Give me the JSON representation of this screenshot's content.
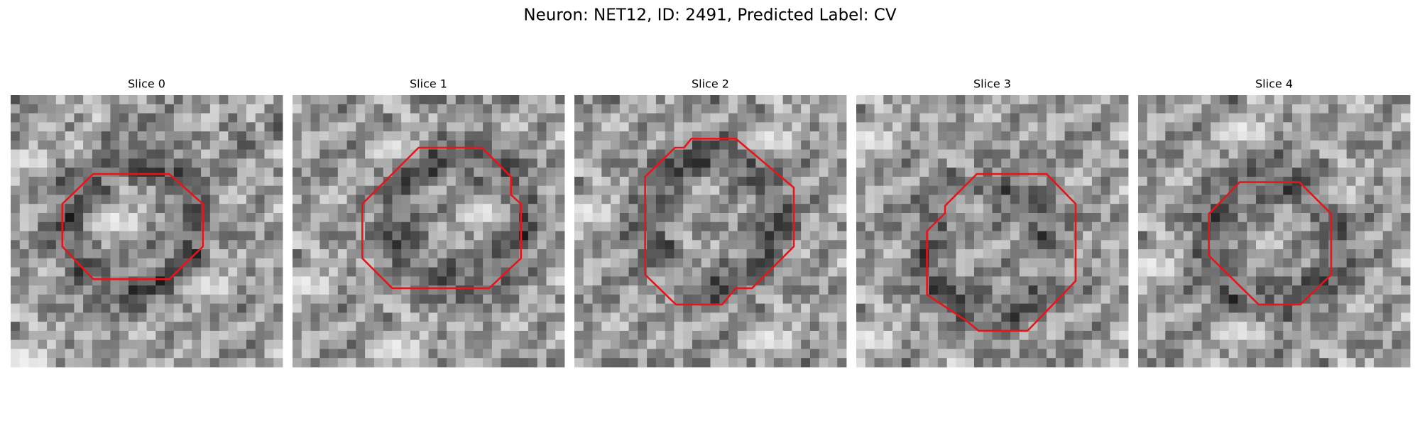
{
  "title": "Neuron: NET12, ID: 2491, Predicted Label: CV",
  "panels": [
    {
      "title": "Slice 0"
    },
    {
      "title": "Slice 1"
    },
    {
      "title": "Slice 2"
    },
    {
      "title": "Slice 3"
    },
    {
      "title": "Slice 4"
    }
  ]
}
